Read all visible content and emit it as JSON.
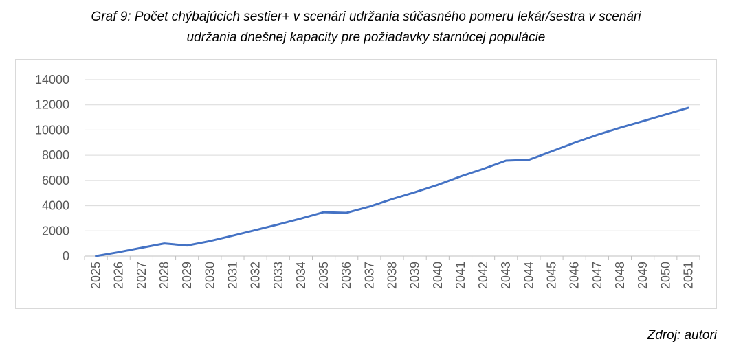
{
  "caption": {
    "line1": "Graf 9: Počet chýbajúcich sestier+ v scenári udržania súčasného pomeru lekár/sestra v scenári",
    "line2": "udržania dnešnej kapacity pre požiadavky starnúcej populácie"
  },
  "source": "Zdroj: autori",
  "colors": {
    "line": "#4472c4",
    "grid": "#d9d9d9",
    "axis": "#bfbfbf"
  },
  "chart_data": {
    "type": "line",
    "title": "",
    "xlabel": "",
    "ylabel": "",
    "ylim": [
      0,
      14000
    ],
    "yticks": [
      0,
      2000,
      4000,
      6000,
      8000,
      10000,
      12000,
      14000
    ],
    "grid": true,
    "legend": "none",
    "categories": [
      "2025",
      "2026",
      "2027",
      "2028",
      "2029",
      "2030",
      "2031",
      "2032",
      "2033",
      "2034",
      "2035",
      "2036",
      "2037",
      "2038",
      "2039",
      "2040",
      "2041",
      "2042",
      "2043",
      "2044",
      "2045",
      "2046",
      "2047",
      "2048",
      "2049",
      "2050",
      "2051"
    ],
    "series": [
      {
        "values": [
          0,
          310,
          660,
          1000,
          840,
          1190,
          1620,
          2060,
          2510,
          2980,
          3480,
          3430,
          3930,
          4520,
          5060,
          5650,
          6320,
          6920,
          7570,
          7640,
          8310,
          8990,
          9620,
          10180,
          10700,
          11230,
          11760
        ]
      }
    ]
  }
}
